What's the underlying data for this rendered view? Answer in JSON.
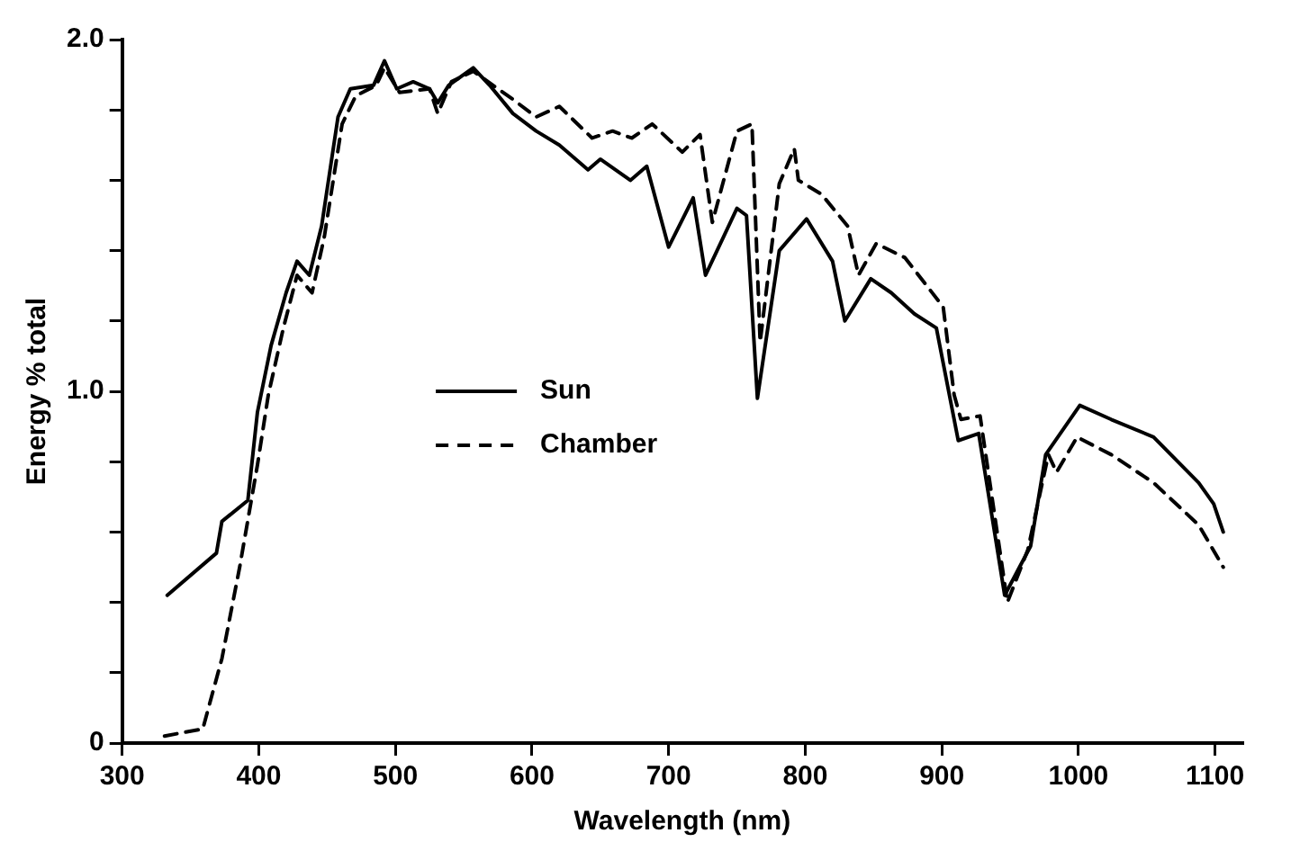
{
  "chart_data": {
    "type": "line",
    "xlabel": "Wavelength (nm)",
    "ylabel": "Energy % total",
    "xlim": [
      300,
      1120
    ],
    "xticks": [
      300,
      400,
      500,
      600,
      700,
      800,
      900,
      1000,
      1100
    ],
    "ylim": [
      0,
      2.0
    ],
    "yticks": [
      0,
      {
        "value": 0.2,
        "label": null
      },
      {
        "value": 0.4,
        "label": null
      },
      {
        "value": 0.6,
        "label": null
      },
      {
        "value": 0.8,
        "label": null
      },
      {
        "value": 1.0,
        "label": "1.0"
      },
      {
        "value": 1.2,
        "label": null
      },
      {
        "value": 1.4,
        "label": null
      },
      {
        "value": 1.6,
        "label": null
      },
      {
        "value": 1.8,
        "label": null
      },
      {
        "value": 2.0,
        "label": "2.0"
      }
    ],
    "grid": false,
    "legend": "center",
    "marker": "none",
    "series": [
      {
        "name": "Sun",
        "color": "#000000",
        "line_style": "solid",
        "x": [
          333,
          369,
          373,
          392,
          399,
          409,
          420,
          428,
          437,
          446,
          458,
          467,
          484,
          492,
          501,
          513,
          525,
          531,
          539,
          557,
          569,
          586,
          603,
          620,
          641,
          650,
          672,
          684,
          700,
          718,
          727,
          750,
          757,
          765,
          781,
          801,
          820,
          829,
          848,
          863,
          880,
          896,
          912,
          927,
          946,
          965,
          976,
          1001,
          1024,
          1055,
          1088,
          1099,
          1106
        ],
        "values": [
          0.42,
          0.54,
          0.63,
          0.69,
          0.94,
          1.13,
          1.28,
          1.37,
          1.33,
          1.47,
          1.78,
          1.86,
          1.87,
          1.94,
          1.86,
          1.88,
          1.86,
          1.82,
          1.87,
          1.92,
          1.87,
          1.79,
          1.74,
          1.7,
          1.63,
          1.66,
          1.6,
          1.64,
          1.41,
          1.55,
          1.33,
          1.52,
          1.5,
          0.98,
          1.4,
          1.49,
          1.37,
          1.2,
          1.32,
          1.28,
          1.22,
          1.18,
          0.86,
          0.88,
          0.42,
          0.56,
          0.82,
          0.96,
          0.92,
          0.87,
          0.74,
          0.68,
          0.6
        ]
      },
      {
        "name": "Chamber",
        "color": "#000000",
        "line_style": "dashed",
        "x": [
          331,
          359,
          373,
          386,
          399,
          407,
          418,
          428,
          439,
          448,
          461,
          471,
          486,
          492,
          503,
          525,
          531,
          541,
          557,
          586,
          603,
          620,
          644,
          659,
          673,
          688,
          710,
          723,
          732,
          750,
          761,
          767,
          781,
          792,
          795,
          812,
          831,
          839,
          852,
          873,
          901,
          909,
          914,
          928,
          948,
          963,
          978,
          984,
          999,
          1024,
          1055,
          1088,
          1106
        ],
        "values": [
          0.02,
          0.04,
          0.24,
          0.5,
          0.79,
          0.99,
          1.18,
          1.33,
          1.28,
          1.44,
          1.76,
          1.84,
          1.87,
          1.92,
          1.85,
          1.86,
          1.79,
          1.88,
          1.91,
          1.83,
          1.78,
          1.81,
          1.72,
          1.74,
          1.72,
          1.76,
          1.68,
          1.73,
          1.48,
          1.74,
          1.76,
          1.14,
          1.59,
          1.69,
          1.6,
          1.56,
          1.47,
          1.33,
          1.42,
          1.38,
          1.24,
          0.99,
          0.92,
          0.93,
          0.4,
          0.55,
          0.82,
          0.77,
          0.87,
          0.82,
          0.74,
          0.62,
          0.5
        ]
      }
    ]
  }
}
